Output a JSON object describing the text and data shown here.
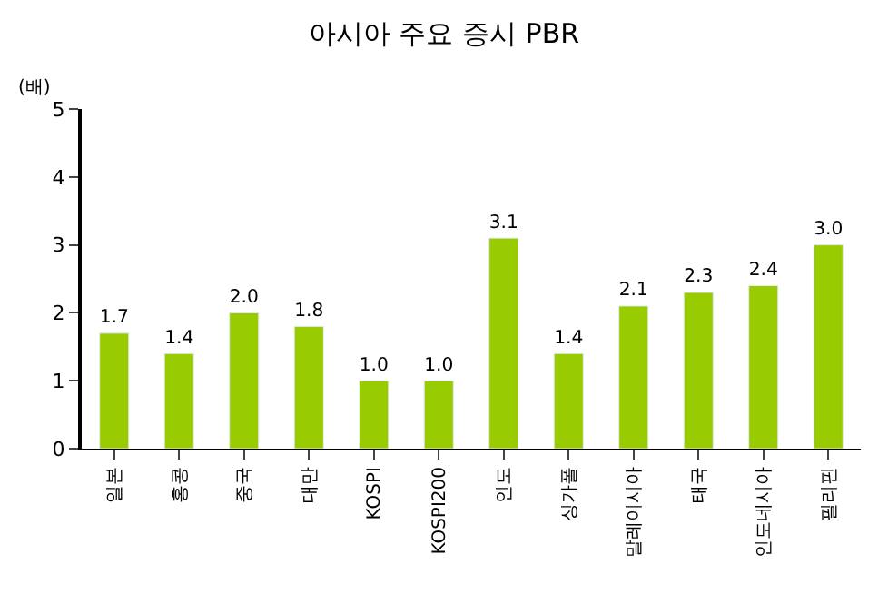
{
  "chart_data": {
    "type": "bar",
    "title": "아시아 주요 증시 PBR",
    "ylabel": "(배)",
    "categories": [
      "일본",
      "홍콩",
      "중국",
      "대만",
      "KOSPI",
      "KOSPI200",
      "인도",
      "싱가폴",
      "말레이시아",
      "태국",
      "인도네시아",
      "필리핀"
    ],
    "values": [
      1.7,
      1.4,
      2.0,
      1.8,
      1.0,
      1.0,
      3.1,
      1.4,
      2.1,
      2.3,
      2.4,
      3.0
    ],
    "value_labels": [
      "1.7",
      "1.4",
      "2.0",
      "1.8",
      "1.0",
      "1.0",
      "3.1",
      "1.4",
      "2.1",
      "2.3",
      "2.4",
      "3.0"
    ],
    "color": "#99cc00",
    "ylim": [
      0,
      5
    ],
    "yticks": [
      0,
      1,
      2,
      3,
      4,
      5
    ],
    "legend": false
  }
}
